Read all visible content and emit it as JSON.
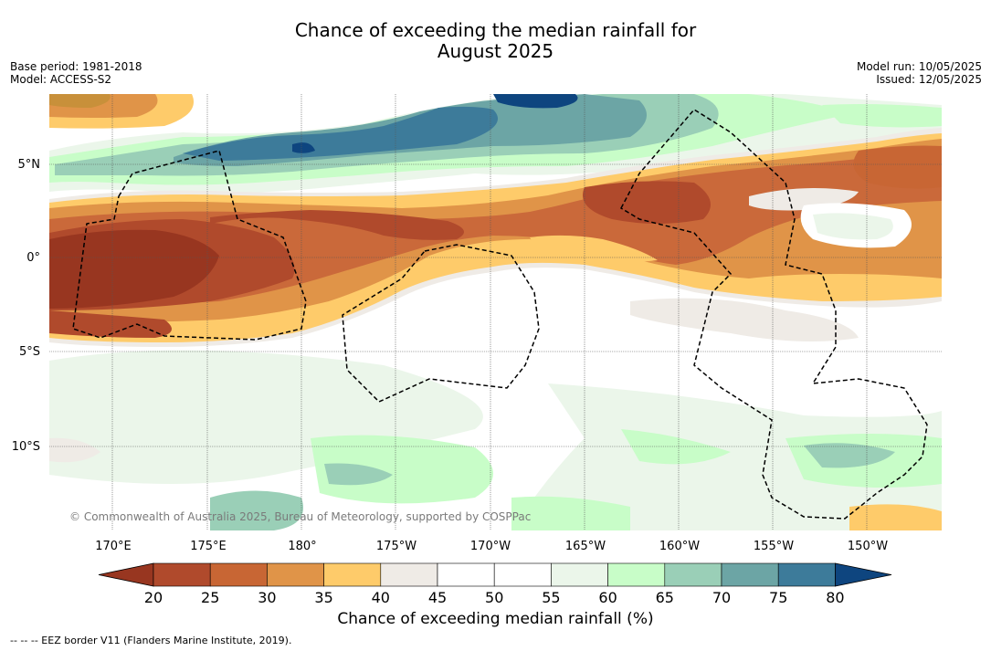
{
  "title_line1": "Chance of exceeding the median rainfall for",
  "title_line2": "August 2025",
  "base_period": "Base period: 1981-2018",
  "model": "Model: ACCESS-S2",
  "model_run": "Model run: 10/05/2025",
  "issued": "Issued: 12/05/2025",
  "lat_labels": [
    "5°N",
    "0°",
    "5°S",
    "10°S"
  ],
  "lon_labels": [
    "170°E",
    "175°E",
    "180°",
    "175°W",
    "170°W",
    "165°W",
    "160°W",
    "155°W",
    "150°W"
  ],
  "copyright": "© Commonwealth of Australia 2025, Bureau of Meteorology, supported by COSPPac",
  "colorbar": {
    "ticks": [
      "20",
      "25",
      "30",
      "35",
      "40",
      "45",
      "50",
      "55",
      "60",
      "65",
      "70",
      "75",
      "80"
    ],
    "colors": [
      "#983620",
      "#b04a2c",
      "#c86634",
      "#e09448",
      "#fecb6a",
      "#efebe6",
      "#ffffff",
      "#ffffff",
      "#ebf6ea",
      "#c8fdc8",
      "#9acfb7",
      "#6ca5a5",
      "#3d7b9a",
      "#0e457f"
    ],
    "title": "Chance of exceeding median rainfall (%)"
  },
  "footer": "--  --  -- EEZ border V11 (Flanders Marine Institute, 2019)."
}
